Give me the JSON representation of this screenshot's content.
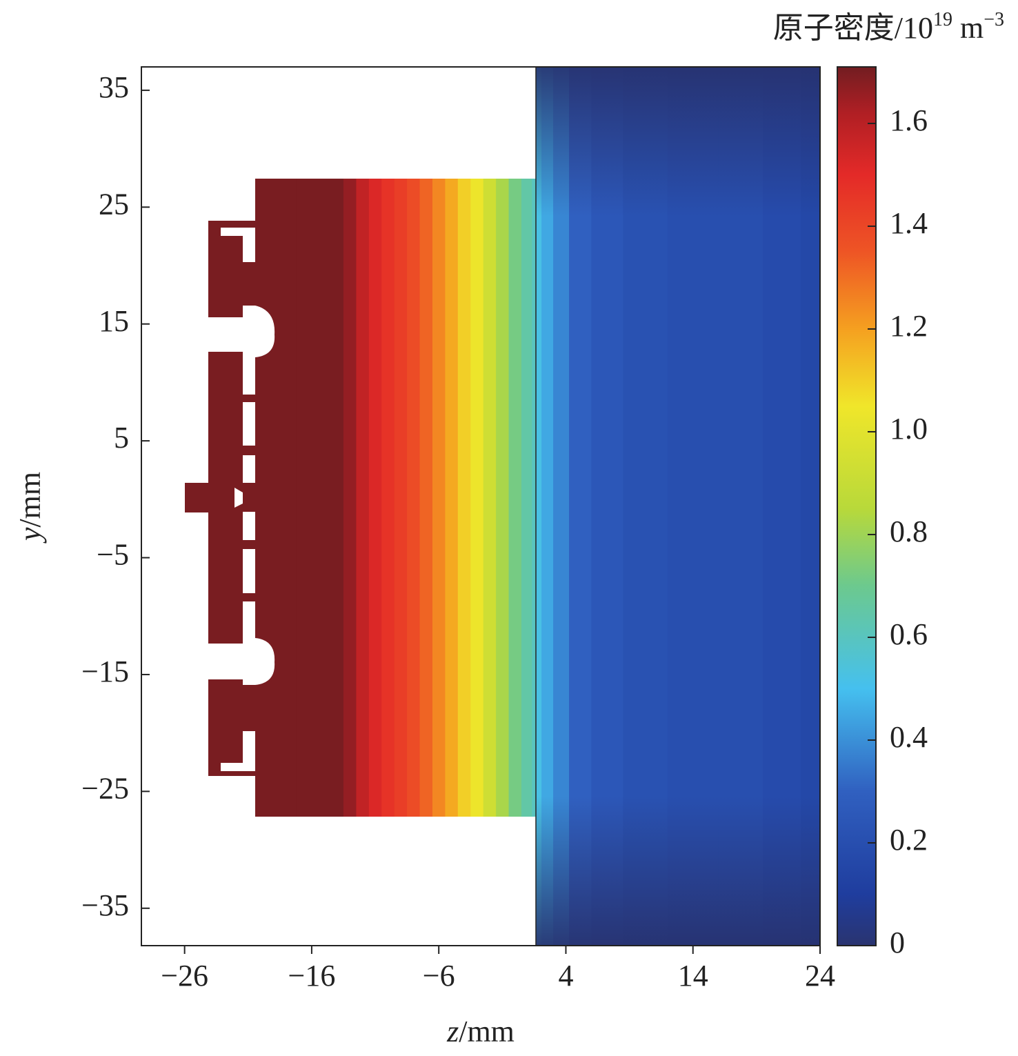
{
  "chart_data": {
    "type": "field",
    "xlabel_var": "z",
    "xlabel_unit": "/mm",
    "ylabel_var": "y",
    "ylabel_unit": "/mm",
    "colorbar_label": {
      "text": "原子密度/10",
      "exp1": "19",
      "unit": " m",
      "exp2": "−3"
    },
    "xlim": [
      -29.4,
      24
    ],
    "ylim": [
      -38.2,
      37
    ],
    "xticks": [
      {
        "value": -26,
        "label": "−26"
      },
      {
        "value": -16,
        "label": "−16"
      },
      {
        "value": -6,
        "label": "−6"
      },
      4,
      14,
      24
    ],
    "yticks": [
      35,
      25,
      15,
      5,
      {
        "value": -5,
        "label": "−5"
      },
      {
        "value": -15,
        "label": "−15"
      },
      {
        "value": -25,
        "label": "−25"
      },
      {
        "value": -35,
        "label": "−35"
      }
    ],
    "clim": [
      0,
      1.71
    ],
    "cticks": [
      0,
      0.2,
      0.4,
      0.6,
      0.8,
      {
        "value": 1,
        "label": "1.0"
      },
      1.2,
      1.4,
      1.6
    ],
    "colormap": [
      [
        0,
        "#2a3470"
      ],
      [
        0.1,
        "#1f3d9e"
      ],
      [
        0.3,
        "#3060c0"
      ],
      [
        0.5,
        "#45c0ef"
      ],
      [
        0.7,
        "#6cc98e"
      ],
      [
        0.85,
        "#b8d93a"
      ],
      [
        1.05,
        "#f0e62a"
      ],
      [
        1.2,
        "#f5a020"
      ],
      [
        1.35,
        "#ee5525"
      ],
      [
        1.5,
        "#e42a28"
      ],
      [
        1.62,
        "#b01f24"
      ],
      [
        1.71,
        "#721d21"
      ]
    ],
    "series": [
      {
        "x": [
          -20.4,
          -14,
          -13,
          -12,
          -11,
          -10,
          -9,
          -8,
          -7,
          -6,
          -5,
          -4,
          -3,
          -2,
          -1,
          0,
          1,
          1.66
        ],
        "values": [
          1.7,
          1.7,
          1.66,
          1.58,
          1.52,
          1.47,
          1.43,
          1.38,
          1.32,
          1.25,
          1.18,
          1.1,
          1.04,
          0.93,
          0.82,
          0.72,
          0.65,
          0.6
        ]
      },
      {
        "x": [
          1.66,
          2.5,
          3.5,
          5,
          7,
          10,
          14,
          18,
          21,
          24
        ],
        "values": [
          0.52,
          0.45,
          0.38,
          0.3,
          0.25,
          0.22,
          0.2,
          0.2,
          0.18,
          0.16
        ]
      }
    ]
  }
}
